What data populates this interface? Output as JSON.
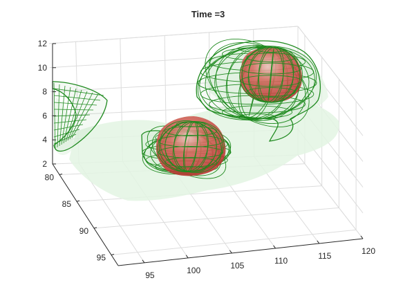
{
  "chart_data": {
    "type": "3d-isosurface",
    "title": "Time =3",
    "xlabel": "",
    "ylabel": "",
    "zlabel": "",
    "grid": true,
    "x_axis": {
      "ticks": [
        "95",
        "100",
        "105",
        "110",
        "115",
        "120"
      ],
      "range": [
        92,
        120
      ]
    },
    "y_axis": {
      "ticks": [
        "80",
        "85",
        "90",
        "95"
      ],
      "range": [
        78,
        97
      ]
    },
    "z_axis": {
      "ticks": [
        "2",
        "4",
        "6",
        "8",
        "10",
        "12"
      ],
      "range": [
        2,
        12
      ]
    },
    "surfaces": [
      {
        "name": "red-blob-upper-right",
        "kind": "solid",
        "color": "#b8302e",
        "center": [
          112,
          86,
          9.5
        ]
      },
      {
        "name": "red-blob-center",
        "kind": "solid",
        "color": "#b8302e",
        "center": [
          101,
          88,
          4.5
        ]
      },
      {
        "name": "green-mesh-upper-right",
        "kind": "wireframe",
        "color": "#1f8a1f",
        "center": [
          112,
          86,
          8.5
        ]
      },
      {
        "name": "green-mesh-center",
        "kind": "wireframe",
        "color": "#1f8a1f",
        "center": [
          101,
          88,
          4
        ]
      },
      {
        "name": "green-mesh-left",
        "kind": "wireframe",
        "color": "#1f8a1f",
        "center": [
          93,
          81,
          6
        ]
      },
      {
        "name": "light-green-haze",
        "kind": "translucent",
        "color": "#dff2df"
      }
    ]
  },
  "colors": {
    "axis": "#262626",
    "grid": "#dcdcdc",
    "solid": "#b8302e",
    "mesh": "#1f8a1f",
    "haze": "#e3f4e3"
  }
}
